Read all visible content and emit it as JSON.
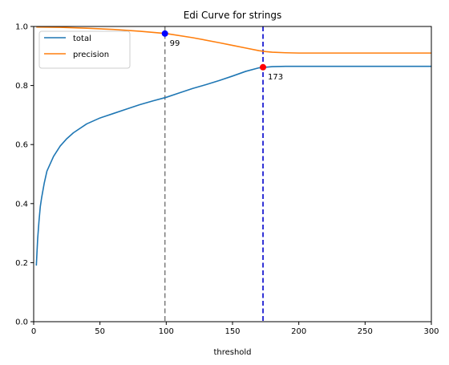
{
  "chart_data": {
    "type": "line",
    "title": "Edi Curve for strings",
    "xlabel": "threshold",
    "ylabel": "",
    "xlim": [
      0,
      300
    ],
    "ylim": [
      0,
      1.0
    ],
    "xticks": [
      0,
      50,
      100,
      150,
      200,
      250,
      300
    ],
    "xtick_labels": [
      "0",
      "50",
      "100",
      "150",
      "200",
      "250",
      "300"
    ],
    "yticks": [
      0.0,
      0.2,
      0.4,
      0.6,
      0.8,
      1.0
    ],
    "ytick_labels": [
      "0.0",
      "0.2",
      "0.4",
      "0.6",
      "0.8",
      "1.0"
    ],
    "grid": false,
    "legend_position": "top-left",
    "series": [
      {
        "name": "total",
        "color": "#1f77b4",
        "x": [
          2,
          3,
          4,
          5,
          6,
          8,
          10,
          12,
          15,
          20,
          25,
          30,
          40,
          50,
          60,
          70,
          80,
          90,
          100,
          110,
          120,
          130,
          140,
          150,
          160,
          170,
          175,
          180,
          190,
          200,
          250,
          300
        ],
        "y": [
          0.19,
          0.28,
          0.34,
          0.39,
          0.42,
          0.47,
          0.51,
          0.53,
          0.56,
          0.595,
          0.62,
          0.64,
          0.67,
          0.69,
          0.705,
          0.72,
          0.735,
          0.748,
          0.76,
          0.775,
          0.79,
          0.803,
          0.817,
          0.832,
          0.848,
          0.86,
          0.862,
          0.864,
          0.865,
          0.865,
          0.865,
          0.865
        ]
      },
      {
        "name": "precision",
        "color": "#ff7f0e",
        "x": [
          2,
          20,
          40,
          60,
          80,
          100,
          120,
          140,
          150,
          160,
          170,
          175,
          180,
          190,
          200,
          220,
          250,
          300
        ],
        "y": [
          0.998,
          0.997,
          0.994,
          0.99,
          0.984,
          0.976,
          0.962,
          0.945,
          0.936,
          0.927,
          0.918,
          0.915,
          0.913,
          0.911,
          0.91,
          0.91,
          0.91,
          0.91
        ]
      }
    ],
    "vlines": [
      {
        "x": 99,
        "color": "#808080",
        "style": "dashed"
      },
      {
        "x": 173,
        "color": "#0000cc",
        "style": "dashed"
      }
    ],
    "points": [
      {
        "x": 99,
        "y": 0.976,
        "color": "#0000ff",
        "label": "99"
      },
      {
        "x": 173,
        "y": 0.862,
        "color": "#ff0000",
        "label": "173"
      }
    ]
  }
}
